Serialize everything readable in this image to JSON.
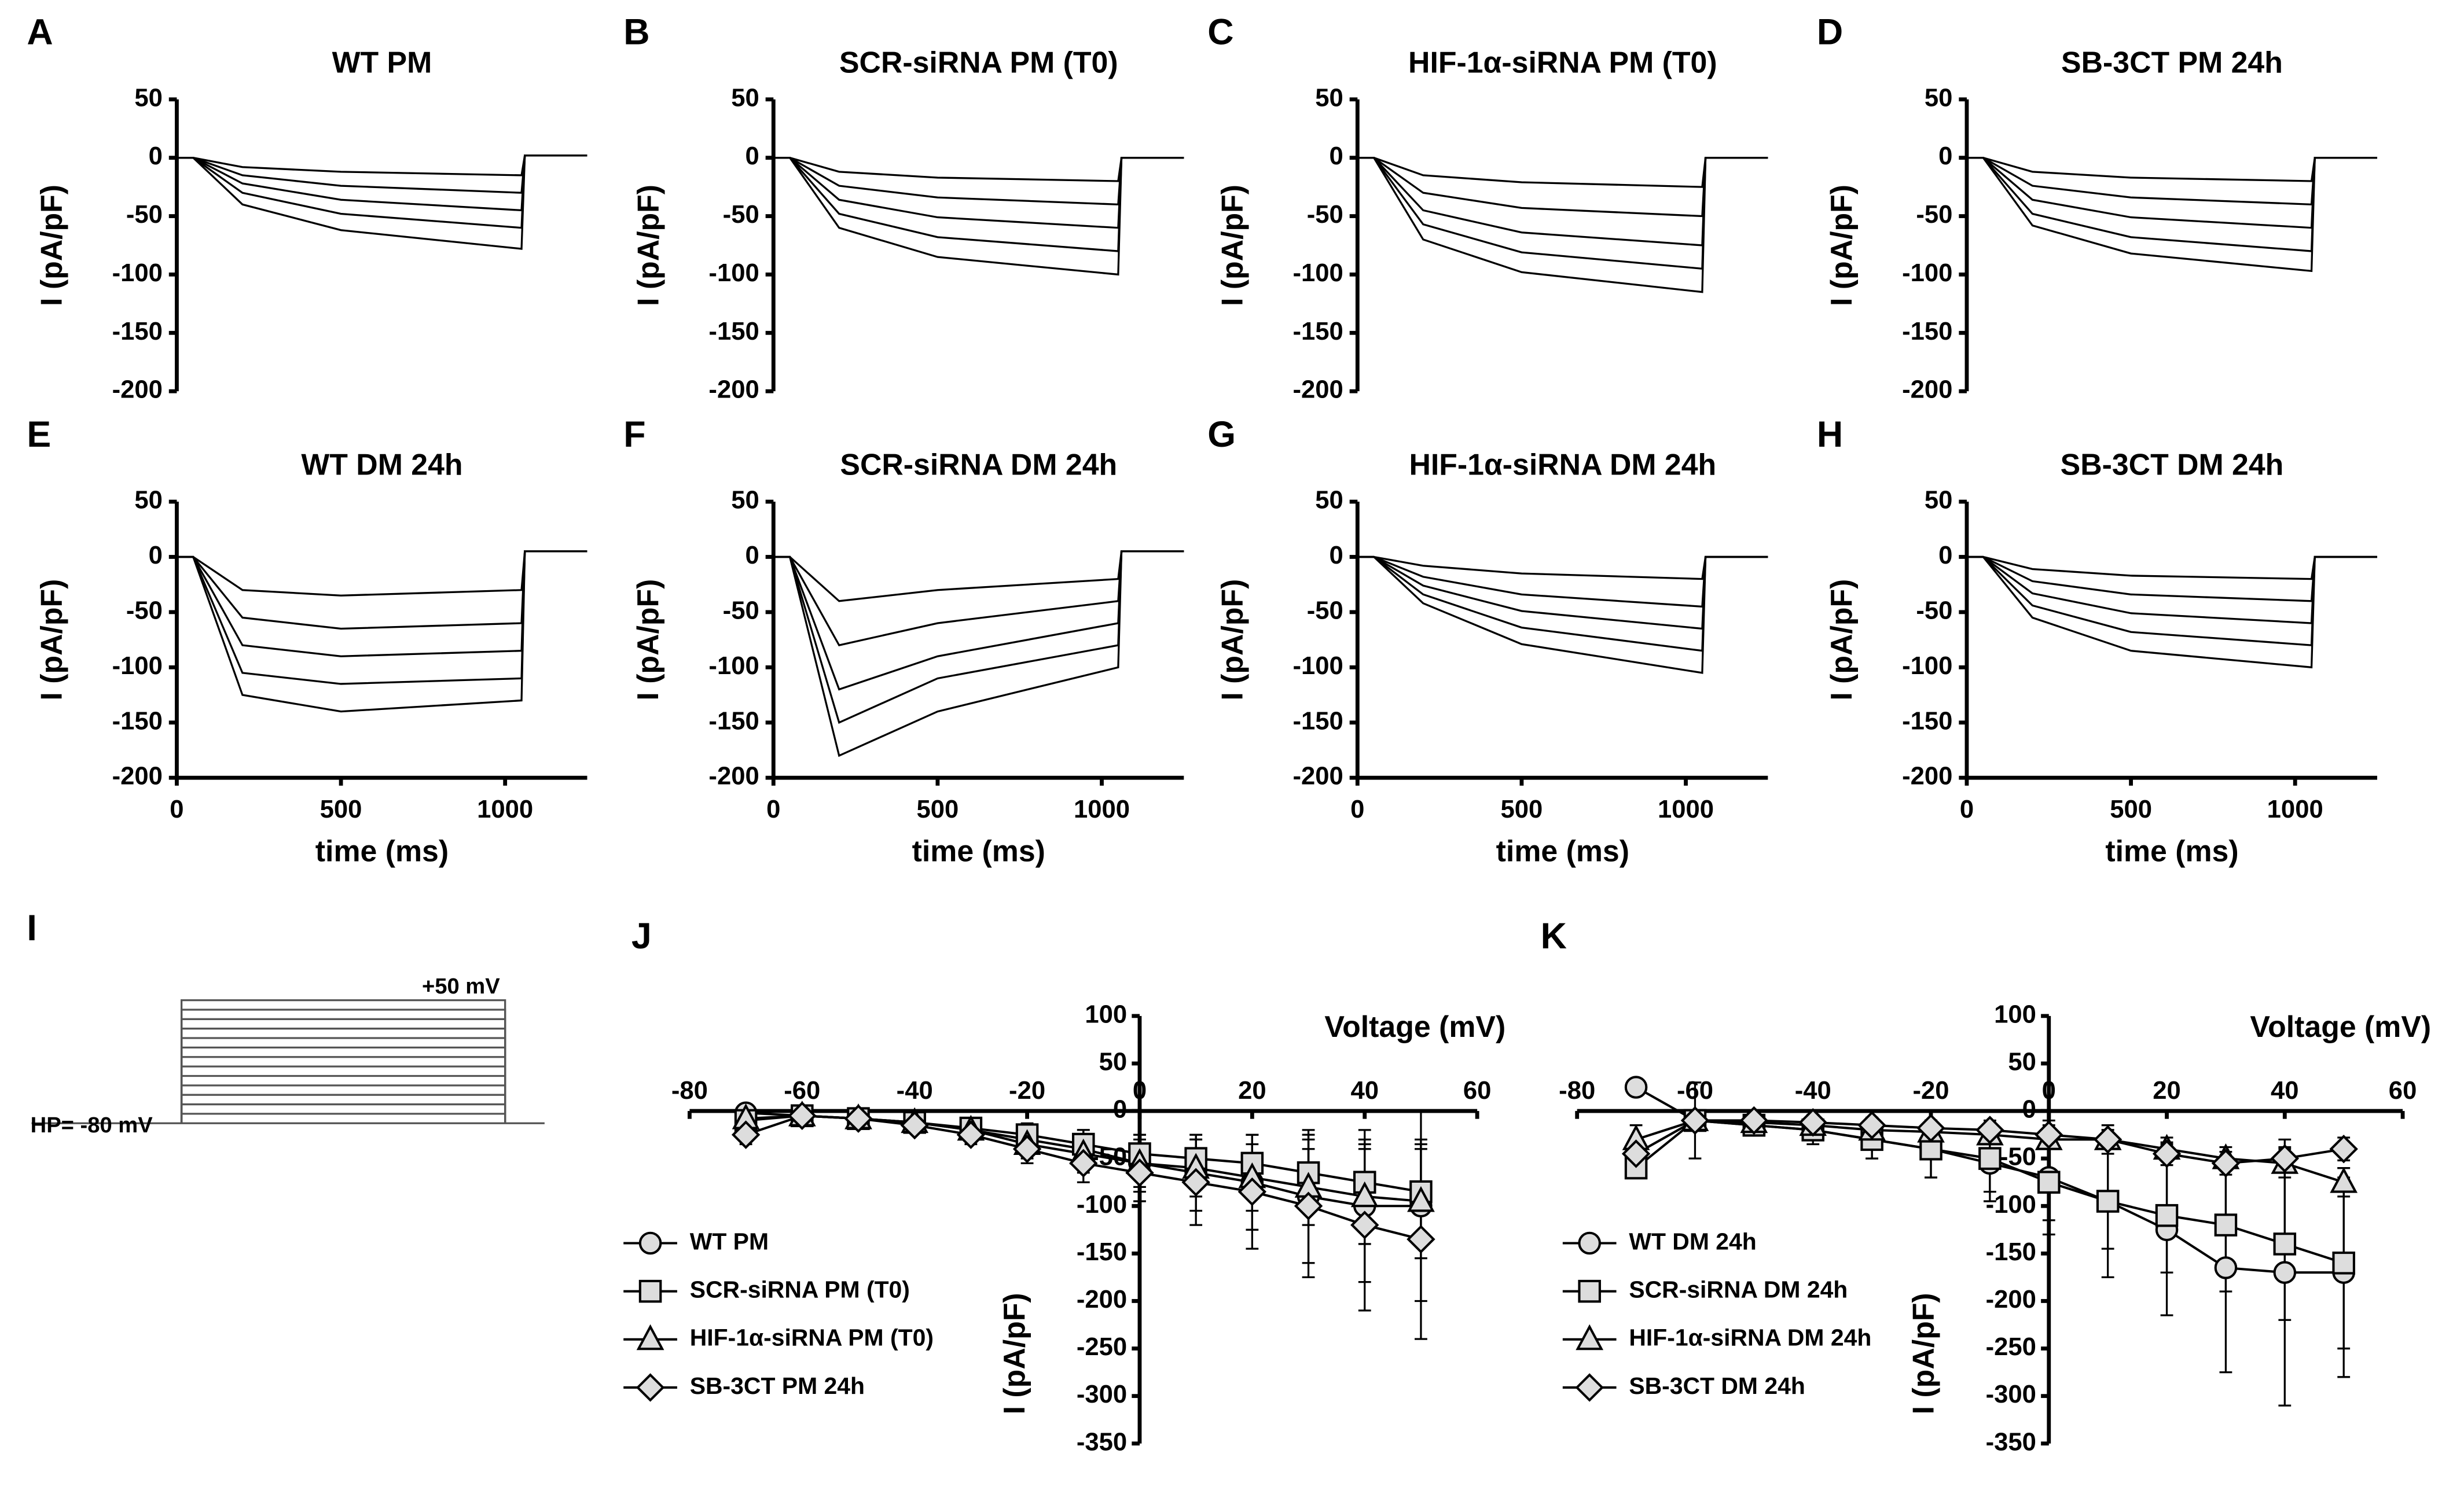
{
  "chart_data": [
    {
      "type": "line",
      "panel": "A",
      "title": "WT PM",
      "ylabel": "I (pA/pF)",
      "x": [
        0,
        50,
        200,
        500,
        1050,
        1060,
        1250
      ],
      "xlim": [
        0,
        1250
      ],
      "ylim": [
        -200,
        50
      ],
      "yticks": [
        -200,
        -150,
        -100,
        -50,
        0,
        50
      ],
      "color": "#000000",
      "series": [
        {
          "values": [
            0,
            0,
            -8,
            -12,
            -15,
            2,
            2
          ]
        },
        {
          "values": [
            0,
            0,
            -15,
            -24,
            -30,
            2,
            2
          ]
        },
        {
          "values": [
            0,
            0,
            -22,
            -36,
            -45,
            2,
            2
          ]
        },
        {
          "values": [
            0,
            0,
            -30,
            -48,
            -60,
            2,
            2
          ]
        },
        {
          "values": [
            0,
            0,
            -40,
            -62,
            -78,
            2,
            2
          ]
        }
      ]
    },
    {
      "type": "line",
      "panel": "B",
      "title": "SCR-siRNA PM (T0)",
      "ylabel": "I (pA/pF)",
      "x": [
        0,
        50,
        200,
        500,
        1050,
        1060,
        1250
      ],
      "xlim": [
        0,
        1250
      ],
      "ylim": [
        -200,
        50
      ],
      "yticks": [
        -200,
        -150,
        -100,
        -50,
        0,
        50
      ],
      "color": "#000000",
      "series": [
        {
          "values": [
            0,
            0,
            -12,
            -17,
            -20,
            0,
            0
          ]
        },
        {
          "values": [
            0,
            0,
            -24,
            -34,
            -40,
            0,
            0
          ]
        },
        {
          "values": [
            0,
            0,
            -36,
            -51,
            -60,
            0,
            0
          ]
        },
        {
          "values": [
            0,
            0,
            -48,
            -68,
            -80,
            0,
            0
          ]
        },
        {
          "values": [
            0,
            0,
            -60,
            -85,
            -100,
            0,
            0
          ]
        }
      ]
    },
    {
      "type": "line",
      "panel": "C",
      "title": "HIF-1α-siRNA PM (T0)",
      "ylabel": "I (pA/pF)",
      "x": [
        0,
        50,
        200,
        500,
        1050,
        1060,
        1250
      ],
      "xlim": [
        0,
        1250
      ],
      "ylim": [
        -200,
        50
      ],
      "yticks": [
        -200,
        -150,
        -100,
        -50,
        0,
        50
      ],
      "color": "#000000",
      "series": [
        {
          "values": [
            0,
            0,
            -15,
            -21,
            -25,
            0,
            0
          ]
        },
        {
          "values": [
            0,
            0,
            -30,
            -43,
            -50,
            0,
            0
          ]
        },
        {
          "values": [
            0,
            0,
            -45,
            -64,
            -75,
            0,
            0
          ]
        },
        {
          "values": [
            0,
            0,
            -57,
            -81,
            -95,
            0,
            0
          ]
        },
        {
          "values": [
            0,
            0,
            -70,
            -98,
            -115,
            0,
            0
          ]
        }
      ]
    },
    {
      "type": "line",
      "panel": "D",
      "title": "SB-3CT PM 24h",
      "ylabel": "I (pA/pF)",
      "x": [
        0,
        50,
        200,
        500,
        1050,
        1060,
        1250
      ],
      "xlim": [
        0,
        1250
      ],
      "ylim": [
        -200,
        50
      ],
      "yticks": [
        -200,
        -150,
        -100,
        -50,
        0,
        50
      ],
      "color": "#000000",
      "series": [
        {
          "values": [
            0,
            0,
            -12,
            -17,
            -20,
            0,
            0
          ]
        },
        {
          "values": [
            0,
            0,
            -24,
            -34,
            -40,
            0,
            0
          ]
        },
        {
          "values": [
            0,
            0,
            -36,
            -51,
            -60,
            0,
            0
          ]
        },
        {
          "values": [
            0,
            0,
            -48,
            -68,
            -80,
            0,
            0
          ]
        },
        {
          "values": [
            0,
            0,
            -58,
            -82,
            -97,
            0,
            0
          ]
        }
      ]
    },
    {
      "type": "line",
      "panel": "E",
      "title": "WT DM 24h",
      "ylabel": "I (pA/pF)",
      "xlabel": "time (ms)",
      "x": [
        0,
        50,
        200,
        500,
        1050,
        1060,
        1250
      ],
      "xlim": [
        0,
        1250
      ],
      "xticks": [
        0,
        500,
        1000
      ],
      "ylim": [
        -200,
        50
      ],
      "yticks": [
        -200,
        -150,
        -100,
        -50,
        0,
        50
      ],
      "color": "#000000",
      "series": [
        {
          "values": [
            0,
            0,
            -30,
            -35,
            -30,
            5,
            5
          ]
        },
        {
          "values": [
            0,
            0,
            -55,
            -65,
            -60,
            5,
            5
          ]
        },
        {
          "values": [
            0,
            0,
            -80,
            -90,
            -85,
            5,
            5
          ]
        },
        {
          "values": [
            0,
            0,
            -105,
            -115,
            -110,
            5,
            5
          ]
        },
        {
          "values": [
            0,
            0,
            -125,
            -140,
            -130,
            5,
            5
          ]
        }
      ]
    },
    {
      "type": "line",
      "panel": "F",
      "title": "SCR-siRNA DM 24h",
      "ylabel": "I (pA/pF)",
      "xlabel": "time (ms)",
      "x": [
        0,
        50,
        200,
        500,
        1050,
        1060,
        1250
      ],
      "xlim": [
        0,
        1250
      ],
      "xticks": [
        0,
        500,
        1000
      ],
      "ylim": [
        -200,
        50
      ],
      "yticks": [
        -200,
        -150,
        -100,
        -50,
        0,
        50
      ],
      "color": "#000000",
      "series": [
        {
          "values": [
            0,
            0,
            -40,
            -30,
            -20,
            5,
            5
          ]
        },
        {
          "values": [
            0,
            0,
            -80,
            -60,
            -40,
            5,
            5
          ]
        },
        {
          "values": [
            0,
            0,
            -120,
            -90,
            -60,
            5,
            5
          ]
        },
        {
          "values": [
            0,
            0,
            -150,
            -110,
            -80,
            5,
            5
          ]
        },
        {
          "values": [
            0,
            0,
            -180,
            -140,
            -100,
            5,
            5
          ]
        }
      ]
    },
    {
      "type": "line",
      "panel": "G",
      "title": "HIF-1α-siRNA DM 24h",
      "ylabel": "I (pA/pF)",
      "xlabel": "time (ms)",
      "x": [
        0,
        50,
        200,
        500,
        1050,
        1060,
        1250
      ],
      "xlim": [
        0,
        1250
      ],
      "xticks": [
        0,
        500,
        1000
      ],
      "ylim": [
        -200,
        50
      ],
      "yticks": [
        -200,
        -150,
        -100,
        -50,
        0,
        50
      ],
      "color": "#000000",
      "series": [
        {
          "values": [
            0,
            0,
            -8,
            -15,
            -20,
            0,
            0
          ]
        },
        {
          "values": [
            0,
            0,
            -18,
            -34,
            -45,
            0,
            0
          ]
        },
        {
          "values": [
            0,
            0,
            -26,
            -49,
            -65,
            0,
            0
          ]
        },
        {
          "values": [
            0,
            0,
            -34,
            -64,
            -85,
            0,
            0
          ]
        },
        {
          "values": [
            0,
            0,
            -42,
            -79,
            -105,
            0,
            0
          ]
        }
      ]
    },
    {
      "type": "line",
      "panel": "H",
      "title": "SB-3CT DM 24h",
      "ylabel": "I (pA/pF)",
      "xlabel": "time (ms)",
      "x": [
        0,
        50,
        200,
        500,
        1050,
        1060,
        1250
      ],
      "xlim": [
        0,
        1250
      ],
      "xticks": [
        0,
        500,
        1000
      ],
      "ylim": [
        -200,
        50
      ],
      "yticks": [
        -200,
        -150,
        -100,
        -50,
        0,
        50
      ],
      "color": "#000000",
      "series": [
        {
          "values": [
            0,
            0,
            -11,
            -17,
            -20,
            0,
            0
          ]
        },
        {
          "values": [
            0,
            0,
            -22,
            -34,
            -40,
            0,
            0
          ]
        },
        {
          "values": [
            0,
            0,
            -33,
            -51,
            -60,
            0,
            0
          ]
        },
        {
          "values": [
            0,
            0,
            -44,
            -68,
            -80,
            0,
            0
          ]
        },
        {
          "values": [
            0,
            0,
            -55,
            -85,
            -100,
            0,
            0
          ]
        }
      ]
    },
    {
      "type": "protocol",
      "panel": "I",
      "annotations": [
        "+50 mV",
        "HP= -80 mV"
      ],
      "values": [
        -80,
        -70,
        -60,
        -50,
        -40,
        -30,
        -20,
        -10,
        0,
        10,
        20,
        30,
        40,
        50
      ],
      "ylim": [
        -80,
        50
      ],
      "color": "#555555"
    },
    {
      "type": "iv",
      "panel": "J",
      "xlabel": "Voltage (mV)",
      "ylabel": "I (pA/pF)",
      "x": [
        -70,
        -60,
        -50,
        -40,
        -30,
        -20,
        -10,
        0,
        10,
        20,
        30,
        40,
        50
      ],
      "xlim": [
        -80,
        60
      ],
      "xticks": [
        -80,
        -60,
        -40,
        -20,
        0,
        20,
        40,
        60
      ],
      "ylim": [
        -350,
        100
      ],
      "yticks": [
        -350,
        -300,
        -250,
        -200,
        -150,
        -100,
        -50,
        0,
        50,
        100
      ],
      "series": [
        {
          "name": "WT PM",
          "marker": "circle",
          "color": "#dddddd",
          "values": [
            -2,
            -5,
            -8,
            -12,
            -20,
            -30,
            -40,
            -55,
            -65,
            -75,
            -90,
            -100,
            -100
          ],
          "errors": [
            5,
            5,
            5,
            8,
            10,
            15,
            20,
            30,
            40,
            50,
            70,
            80,
            100
          ]
        },
        {
          "name": "SCR-siRNA PM (T0)",
          "marker": "square",
          "color": "#dddddd",
          "values": [
            -10,
            -5,
            -8,
            -12,
            -18,
            -25,
            -35,
            -45,
            -50,
            -55,
            -65,
            -75,
            -85
          ],
          "errors": [
            5,
            5,
            5,
            8,
            10,
            12,
            15,
            20,
            25,
            30,
            35,
            40,
            45
          ]
        },
        {
          "name": "HIF-1α-siRNA PM (T0)",
          "marker": "triangle",
          "color": "#dddddd",
          "values": [
            -8,
            -5,
            -8,
            -12,
            -20,
            -35,
            -45,
            -55,
            -60,
            -70,
            -80,
            -90,
            -95
          ],
          "errors": [
            5,
            5,
            5,
            8,
            10,
            15,
            20,
            25,
            30,
            35,
            40,
            50,
            60
          ]
        },
        {
          "name": "SB-3CT PM 24h",
          "marker": "diamond",
          "color": "#dddddd",
          "values": [
            -25,
            -5,
            -8,
            -15,
            -25,
            -40,
            -55,
            -65,
            -75,
            -85,
            -100,
            -120,
            -135
          ],
          "errors": [
            10,
            5,
            5,
            8,
            10,
            15,
            20,
            30,
            45,
            60,
            75,
            90,
            105
          ]
        }
      ]
    },
    {
      "type": "iv",
      "panel": "K",
      "xlabel": "Voltage (mV)",
      "ylabel": "I (pA/pF)",
      "x": [
        -70,
        -60,
        -50,
        -40,
        -30,
        -20,
        -10,
        0,
        10,
        20,
        30,
        40,
        50
      ],
      "xlim": [
        -80,
        60
      ],
      "xticks": [
        -80,
        -60,
        -40,
        -20,
        0,
        20,
        40,
        60
      ],
      "ylim": [
        -350,
        100
      ],
      "yticks": [
        -350,
        -300,
        -250,
        -200,
        -150,
        -100,
        -50,
        0,
        50,
        100
      ],
      "series": [
        {
          "name": "WT DM 24h",
          "marker": "circle",
          "color": "#dddddd",
          "values": [
            25,
            -10,
            -15,
            -20,
            -30,
            -40,
            -55,
            -70,
            -95,
            -125,
            -165,
            -170,
            -170
          ],
          "errors": [
            5,
            40,
            10,
            10,
            20,
            30,
            40,
            60,
            80,
            90,
            110,
            140,
            110
          ]
        },
        {
          "name": "SCR-siRNA DM 24h",
          "marker": "square",
          "color": "#dddddd",
          "values": [
            -60,
            -10,
            -15,
            -20,
            -30,
            -40,
            -50,
            -75,
            -95,
            -110,
            -120,
            -140,
            -160
          ],
          "errors": [
            10,
            10,
            10,
            15,
            20,
            30,
            35,
            40,
            50,
            60,
            70,
            80,
            90
          ]
        },
        {
          "name": "HIF-1α-siRNA DM 24h",
          "marker": "triangle",
          "color": "#dddddd",
          "values": [
            -30,
            -10,
            -12,
            -15,
            -20,
            -22,
            -25,
            -30,
            -30,
            -40,
            -50,
            -55,
            -75
          ],
          "errors": [
            15,
            10,
            8,
            8,
            8,
            8,
            10,
            10,
            10,
            12,
            12,
            15,
            15
          ]
        },
        {
          "name": "SB-3CT DM 24h",
          "marker": "diamond",
          "color": "#dddddd",
          "values": [
            -45,
            -10,
            -10,
            -12,
            -15,
            -18,
            -20,
            -25,
            -30,
            -45,
            -55,
            -50,
            -40
          ],
          "errors": [
            10,
            8,
            8,
            8,
            8,
            8,
            10,
            10,
            10,
            12,
            12,
            12,
            12
          ]
        }
      ]
    }
  ]
}
